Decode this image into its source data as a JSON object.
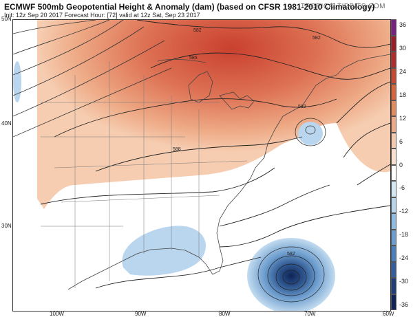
{
  "header": {
    "title": "ECMWF 500mb Geopotential Height & Anomaly (dam) (based on CFSR 1981-2010 Climatology)",
    "subtitle": "Init: 12z Sep 20 2017   Forecast Hour: [72]   valid at 12z Sat, Sep 23 2017",
    "brand": "TROPICALTIDBITS.COM"
  },
  "axes": {
    "lat_labels": [
      "50N",
      "40N",
      "30N"
    ],
    "lon_labels": [
      "100W",
      "90W",
      "80W",
      "70W",
      "60W"
    ]
  },
  "contour_labels": [
    "582",
    "585",
    "588",
    "582",
    "582",
    "582"
  ],
  "colorbar": {
    "labels": [
      "36",
      "30",
      "24",
      "18",
      "12",
      "6",
      "0",
      "-6",
      "-12",
      "-18",
      "-24",
      "-30",
      "-36"
    ],
    "colors": [
      "#7a1f86",
      "#9b1c2b",
      "#b42b2b",
      "#c9472f",
      "#d9653e",
      "#e48a5c",
      "#eeaa86",
      "#f5c9ad",
      "#fbe1cf",
      "#ffffff",
      "#d7e8f5",
      "#b7d6ee",
      "#8fbce2",
      "#6a9ed1",
      "#4c7fbd",
      "#335f9f",
      "#1f3f7a",
      "#10245a"
    ]
  },
  "map": {
    "anomaly_colors": {
      "strong_pos": "#d24c3a",
      "mid_pos": "#e98b67",
      "weak_pos": "#f4c0a2",
      "weak_neg": "#b9d6ee",
      "strong_neg": "#163a74"
    }
  }
}
